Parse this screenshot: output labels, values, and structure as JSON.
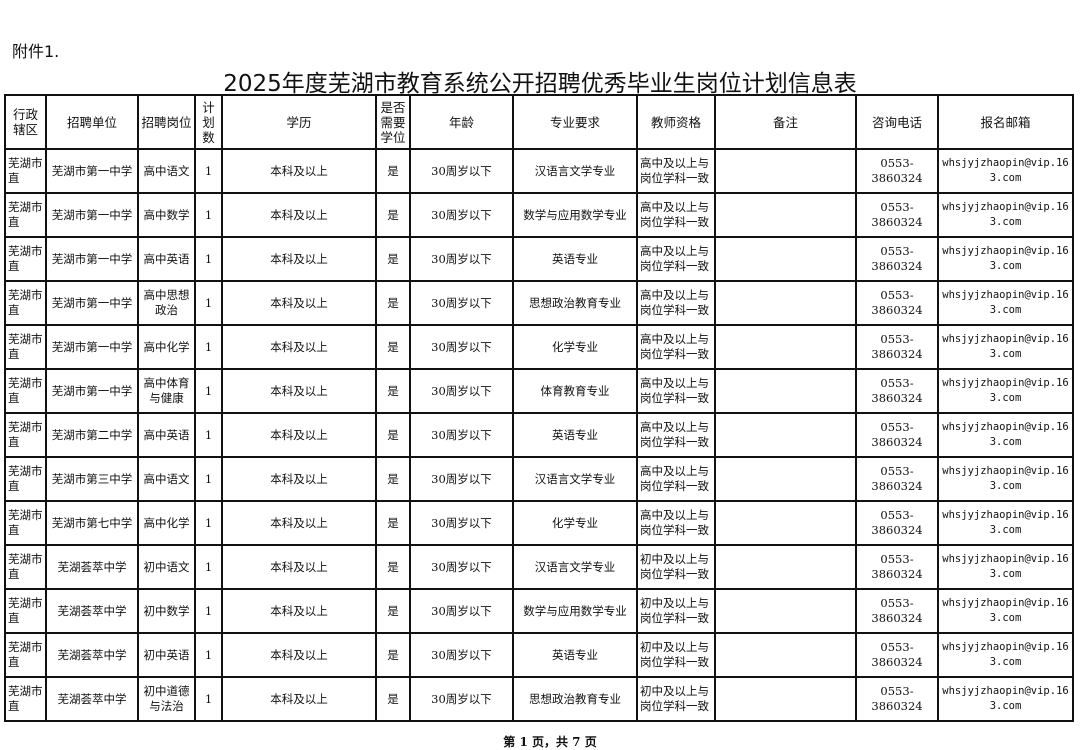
{
  "attachment": "附件1.",
  "title": "2025年度芜湖市教育系统公开招聘优秀毕业生岗位计划信息表",
  "headers": [
    "行政辖区",
    "招聘单位",
    "招聘岗位",
    "计划数",
    "学历",
    "是否需要学位",
    "年龄",
    "专业要求",
    "教师资格",
    "备注",
    "咨询电话",
    "报名邮箱"
  ],
  "rows": [
    [
      "芜湖市直",
      "芜湖市第一中学",
      "高中语文",
      "1",
      "本科及以上",
      "是",
      "30周岁以下",
      "汉语言文学专业",
      "高中及以上与岗位学科一致",
      "",
      "0553-3860324",
      "whsjyjzhaopin@vip.163.com"
    ],
    [
      "芜湖市直",
      "芜湖市第一中学",
      "高中数学",
      "1",
      "本科及以上",
      "是",
      "30周岁以下",
      "数学与应用数学专业",
      "高中及以上与岗位学科一致",
      "",
      "0553-3860324",
      "whsjyjzhaopin@vip.163.com"
    ],
    [
      "芜湖市直",
      "芜湖市第一中学",
      "高中英语",
      "1",
      "本科及以上",
      "是",
      "30周岁以下",
      "英语专业",
      "高中及以上与岗位学科一致",
      "",
      "0553-3860324",
      "whsjyjzhaopin@vip.163.com"
    ],
    [
      "芜湖市直",
      "芜湖市第一中学",
      "高中思想政治",
      "1",
      "本科及以上",
      "是",
      "30周岁以下",
      "思想政治教育专业",
      "高中及以上与岗位学科一致",
      "",
      "0553-3860324",
      "whsjyjzhaopin@vip.163.com"
    ],
    [
      "芜湖市直",
      "芜湖市第一中学",
      "高中化学",
      "1",
      "本科及以上",
      "是",
      "30周岁以下",
      "化学专业",
      "高中及以上与岗位学科一致",
      "",
      "0553-3860324",
      "whsjyjzhaopin@vip.163.com"
    ],
    [
      "芜湖市直",
      "芜湖市第一中学",
      "高中体育与健康",
      "1",
      "本科及以上",
      "是",
      "30周岁以下",
      "体育教育专业",
      "高中及以上与岗位学科一致",
      "",
      "0553-3860324",
      "whsjyjzhaopin@vip.163.com"
    ],
    [
      "芜湖市直",
      "芜湖市第二中学",
      "高中英语",
      "1",
      "本科及以上",
      "是",
      "30周岁以下",
      "英语专业",
      "高中及以上与岗位学科一致",
      "",
      "0553-3860324",
      "whsjyjzhaopin@vip.163.com"
    ],
    [
      "芜湖市直",
      "芜湖市第三中学",
      "高中语文",
      "1",
      "本科及以上",
      "是",
      "30周岁以下",
      "汉语言文学专业",
      "高中及以上与岗位学科一致",
      "",
      "0553-3860324",
      "whsjyjzhaopin@vip.163.com"
    ],
    [
      "芜湖市直",
      "芜湖市第七中学",
      "高中化学",
      "1",
      "本科及以上",
      "是",
      "30周岁以下",
      "化学专业",
      "高中及以上与岗位学科一致",
      "",
      "0553-3860324",
      "whsjyjzhaopin@vip.163.com"
    ],
    [
      "芜湖市直",
      "芜湖荟萃中学",
      "初中语文",
      "1",
      "本科及以上",
      "是",
      "30周岁以下",
      "汉语言文学专业",
      "初中及以上与岗位学科一致",
      "",
      "0553-3860324",
      "whsjyjzhaopin@vip.163.com"
    ],
    [
      "芜湖市直",
      "芜湖荟萃中学",
      "初中数学",
      "1",
      "本科及以上",
      "是",
      "30周岁以下",
      "数学与应用数学专业",
      "初中及以上与岗位学科一致",
      "",
      "0553-3860324",
      "whsjyjzhaopin@vip.163.com"
    ],
    [
      "芜湖市直",
      "芜湖荟萃中学",
      "初中英语",
      "1",
      "本科及以上",
      "是",
      "30周岁以下",
      "英语专业",
      "初中及以上与岗位学科一致",
      "",
      "0553-3860324",
      "whsjyjzhaopin@vip.163.com"
    ],
    [
      "芜湖市直",
      "芜湖荟萃中学",
      "初中道德与法治",
      "1",
      "本科及以上",
      "是",
      "30周岁以下",
      "思想政治教育专业",
      "初中及以上与岗位学科一致",
      "",
      "0553-3860324",
      "whsjyjzhaopin@vip.163.com"
    ]
  ],
  "footer": "第 1 页，共 7 页"
}
